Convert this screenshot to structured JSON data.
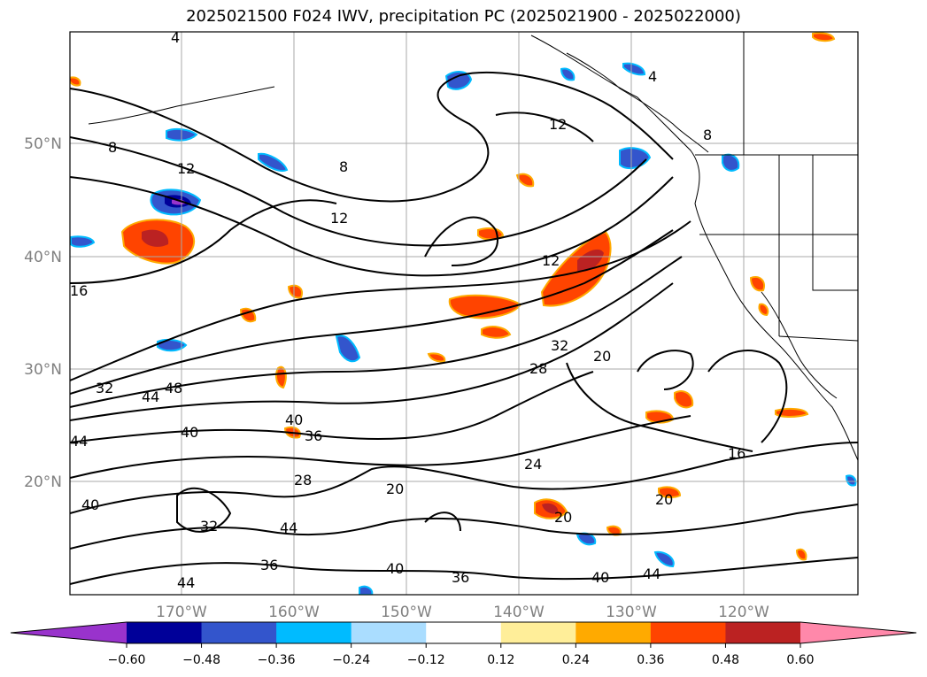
{
  "title": "2025021500 F024 IWV, precipitation PC (2025021900 - 2025022000)",
  "map": {
    "lat_labels": [
      "50°N",
      "40°N",
      "30°N",
      "20°N"
    ],
    "lon_labels": [
      "170°W",
      "160°W",
      "150°W",
      "140°W",
      "130°W",
      "120°W"
    ],
    "contour_labels": [
      "4",
      "4",
      "8",
      "8",
      "8",
      "12",
      "12",
      "12",
      "12",
      "16",
      "16",
      "20",
      "20",
      "20",
      "20",
      "24",
      "28",
      "28",
      "32",
      "32",
      "32",
      "36",
      "36",
      "36",
      "40",
      "40",
      "40",
      "40",
      "40",
      "44",
      "44",
      "44",
      "44",
      "44",
      "48"
    ]
  },
  "colorbar": {
    "ticks": [
      "−0.60",
      "−0.48",
      "−0.36",
      "−0.24",
      "−0.12",
      "0.12",
      "0.24",
      "0.36",
      "0.48",
      "0.60"
    ],
    "colors": [
      "#9933cc",
      "#000099",
      "#3355cc",
      "#00bbff",
      "#aaddff",
      "#ffffff",
      "#ffee99",
      "#ffaa00",
      "#ff4400",
      "#bb2222",
      "#ff88aa"
    ]
  }
}
